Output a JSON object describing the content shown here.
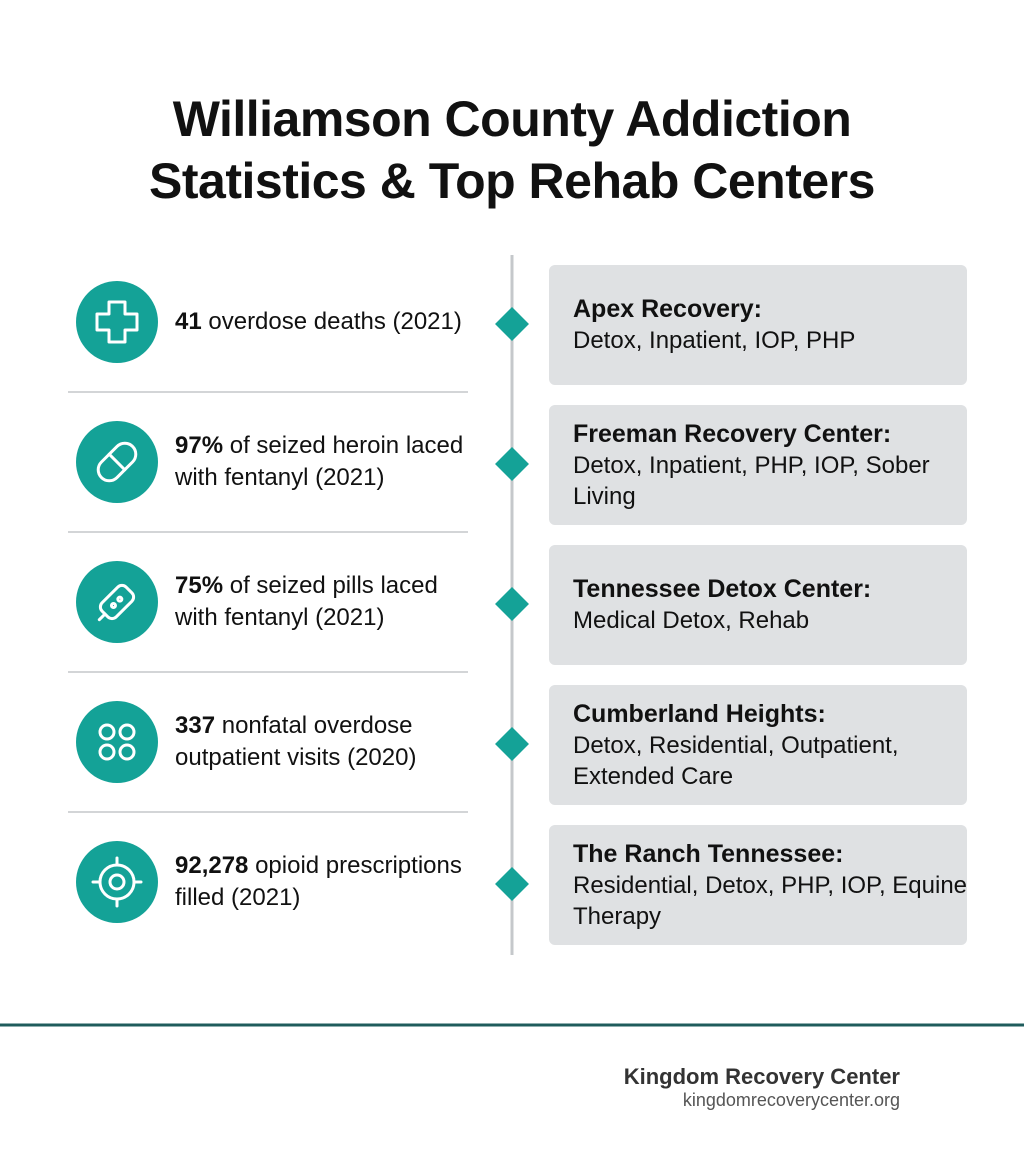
{
  "header": {
    "title": "Williamson County Addiction Statistics & Top Rehab Centers"
  },
  "stats": [
    {
      "bold": "41",
      "text": " overdose deaths (2021)"
    },
    {
      "bold": "97%",
      "text": " of seized heroin laced with fentanyl (2021)"
    },
    {
      "bold": "75%",
      "text": " of seized pills laced with fentanyl (2021)"
    },
    {
      "bold": "337",
      "text": " nonfatal overdose outpatient visits (2020)"
    },
    {
      "bold": "92,278",
      "text": " opioid prescriptions filled (2021)"
    }
  ],
  "centers": [
    {
      "name": "Apex Recovery:",
      "services": "Detox, Inpatient, IOP, PHP"
    },
    {
      "name": "Freeman Recovery Center:",
      "services": "Detox, Inpatient, PHP, IOP, Sober Living"
    },
    {
      "name": "Tennessee Detox Center:",
      "services": "Medical Detox, Rehab"
    },
    {
      "name": "Cumberland Heights:",
      "services": "Detox, Residential, Outpatient, Extended Care"
    },
    {
      "name": "The Ranch Tennessee:",
      "services": "Residential, Detox, PHP, IOP, Equine Therapy"
    }
  ],
  "footer": {
    "brand": "Kingdom Recovery Center",
    "url": "kingdomrecoverycenter.org"
  }
}
